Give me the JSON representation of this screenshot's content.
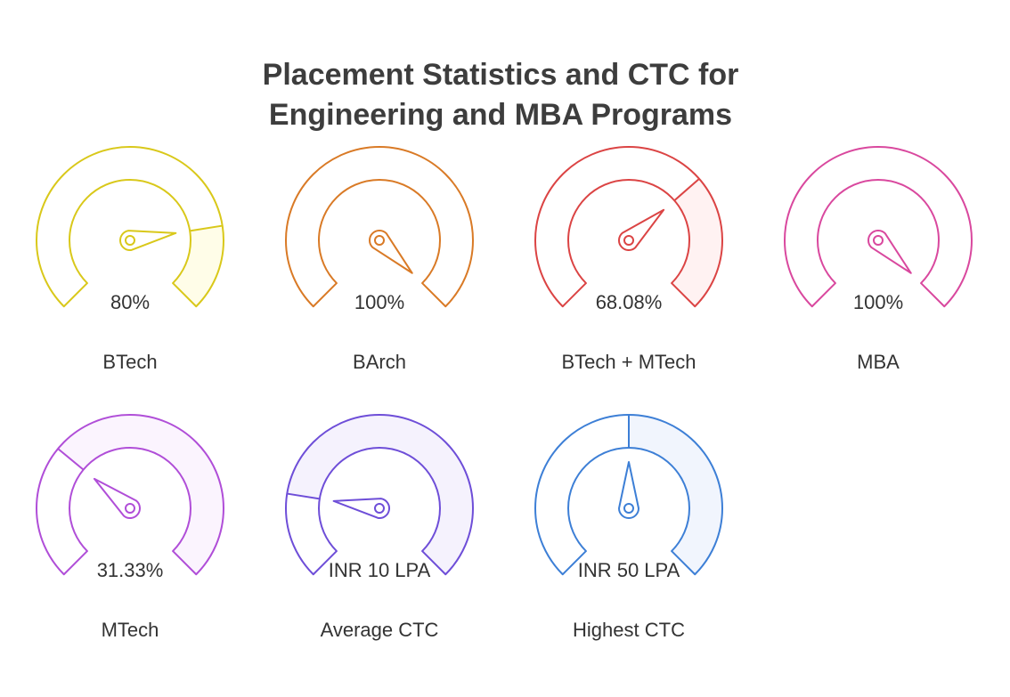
{
  "title": {
    "line1": "Placement Statistics and CTC for",
    "line2": "Engineering and MBA Programs"
  },
  "gauges": [
    {
      "label": "BTech",
      "value_text": "80%",
      "fraction": 0.8,
      "needle_fraction": 0.8,
      "color": "#d9c81a",
      "fill": "#fffde8"
    },
    {
      "label": "BArch",
      "value_text": "100%",
      "fraction": 1.0,
      "needle_fraction": 1.0,
      "color": "#d97a26",
      "fill": "#fff6ec"
    },
    {
      "label": "BTech + MTech",
      "value_text": "68.08%",
      "fraction": 0.6808,
      "needle_fraction": 0.6808,
      "color": "#db4444",
      "fill": "#fff2f2"
    },
    {
      "label": "MBA",
      "value_text": "100%",
      "fraction": 1.0,
      "needle_fraction": 1.0,
      "color": "#d9489e",
      "fill": "#fff2f9"
    },
    {
      "label": "MTech",
      "value_text": "31.33%",
      "fraction": 0.3133,
      "needle_fraction": 0.3133,
      "color": "#b04ed8",
      "fill": "#fbf4fe"
    },
    {
      "label": "Average CTC",
      "value_text": "INR 10 LPA",
      "fraction": 0.2,
      "needle_fraction": 0.2,
      "color": "#6e4ed8",
      "fill": "#f5f2fd"
    },
    {
      "label": "Highest CTC",
      "value_text": "INR 50 LPA",
      "fraction": 0.5,
      "needle_fraction": 0.5,
      "color": "#3d7fd6",
      "fill": "#f1f5fd"
    }
  ]
}
